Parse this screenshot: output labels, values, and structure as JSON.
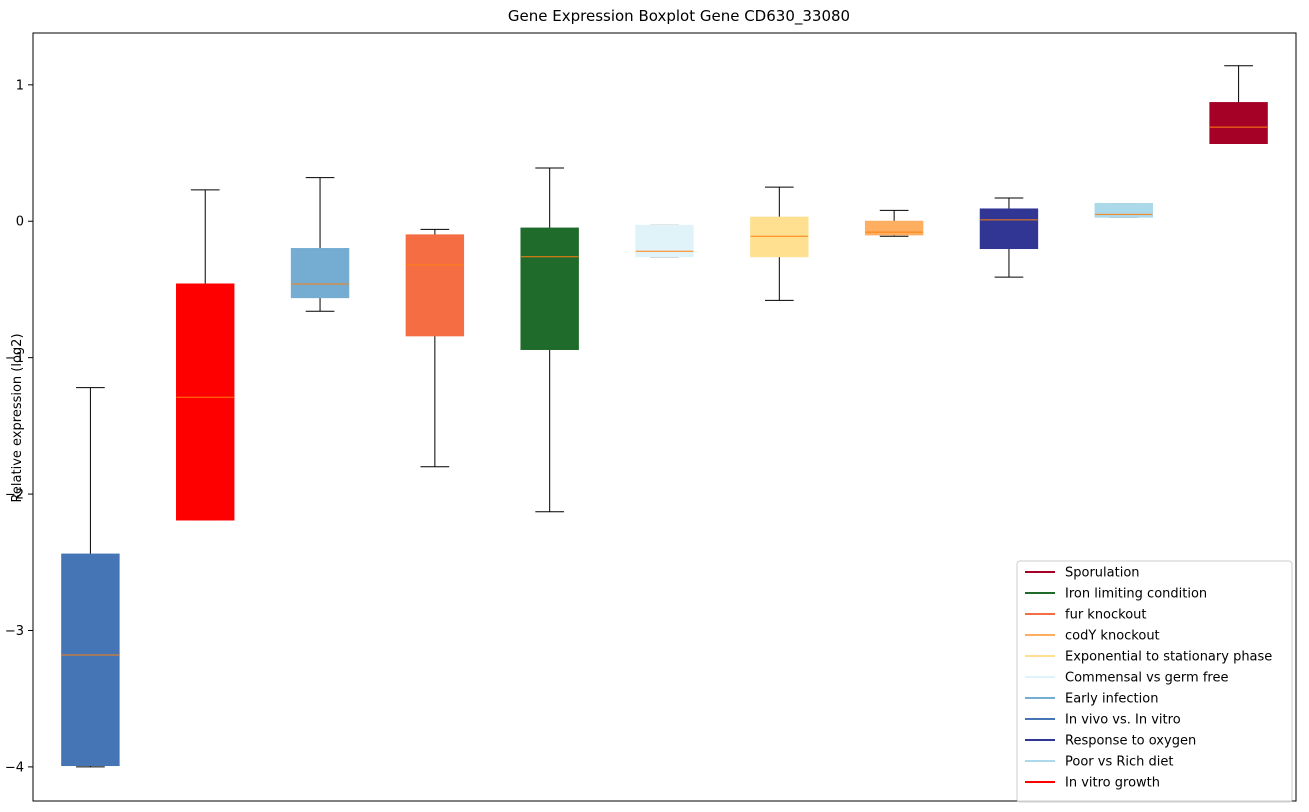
{
  "chart_data": {
    "type": "boxplot",
    "title": "Gene Expression Boxplot Gene CD630_33080",
    "xlabel": "",
    "ylabel": "Relative expression (log2)",
    "ylim": [
      -4.25,
      1.38
    ],
    "yticks": [
      1,
      0,
      -1,
      -2,
      -3,
      -4
    ],
    "ytick_labels": [
      "1",
      "0",
      "−1",
      "−2",
      "−3",
      "−4"
    ],
    "grid": false,
    "legend_position": "lower right",
    "median_color": "#ff7f0e",
    "boxes": [
      {
        "name": "In vivo vs. In vitro",
        "color": "#4575b4",
        "whisker_low": -4.0,
        "q1": -3.99,
        "median": -3.18,
        "q3": -2.44,
        "whisker_high": -1.22
      },
      {
        "name": "In vitro growth",
        "color": "#ff0000",
        "whisker_low": -2.19,
        "q1": -2.19,
        "median": -1.29,
        "q3": -0.46,
        "whisker_high": 0.23
      },
      {
        "name": "Early infection",
        "color": "#74add1",
        "whisker_low": -0.66,
        "q1": -0.56,
        "median": -0.46,
        "q3": -0.2,
        "whisker_high": 0.32
      },
      {
        "name": "fur knockout",
        "color": "#f46d43",
        "whisker_low": -1.8,
        "q1": -0.84,
        "median": -0.32,
        "q3": -0.1,
        "whisker_high": -0.06
      },
      {
        "name": "Iron limiting condition",
        "color": "#1f6b2b",
        "whisker_low": -2.13,
        "q1": -0.94,
        "median": -0.26,
        "q3": -0.05,
        "whisker_high": 0.39
      },
      {
        "name": "Commensal vs germ free",
        "color": "#e0f3f8",
        "whisker_low": -0.26,
        "q1": -0.26,
        "median": -0.22,
        "q3": -0.03,
        "whisker_high": -0.03
      },
      {
        "name": "Exponential to stationary phase",
        "color": "#fee090",
        "whisker_low": -0.58,
        "q1": -0.26,
        "median": -0.11,
        "q3": 0.03,
        "whisker_high": 0.25
      },
      {
        "name": "codY knockout",
        "color": "#fdae61",
        "whisker_low": -0.11,
        "q1": -0.1,
        "median": -0.08,
        "q3": 0.0,
        "whisker_high": 0.08
      },
      {
        "name": "Response to oxygen",
        "color": "#313695",
        "whisker_low": -0.41,
        "q1": -0.2,
        "median": 0.01,
        "q3": 0.09,
        "whisker_high": 0.17
      },
      {
        "name": "Poor vs Rich diet",
        "color": "#abd9e9",
        "whisker_low": 0.03,
        "q1": 0.03,
        "median": 0.05,
        "q3": 0.13,
        "whisker_high": 0.13
      },
      {
        "name": "Sporulation",
        "color": "#a50026",
        "whisker_low": 0.57,
        "q1": 0.57,
        "median": 0.69,
        "q3": 0.87,
        "whisker_high": 1.14
      }
    ],
    "legend": [
      {
        "label": "Sporulation",
        "color": "#a50026"
      },
      {
        "label": "Iron limiting condition",
        "color": "#1f6b2b"
      },
      {
        "label": "fur knockout",
        "color": "#f46d43"
      },
      {
        "label": "codY knockout",
        "color": "#fdae61"
      },
      {
        "label": "Exponential to stationary phase",
        "color": "#fee090"
      },
      {
        "label": "Commensal vs germ free",
        "color": "#e0f3f8"
      },
      {
        "label": "Early infection",
        "color": "#74add1"
      },
      {
        "label": "In vivo vs. In vitro",
        "color": "#4575b4"
      },
      {
        "label": "Response to oxygen",
        "color": "#313695"
      },
      {
        "label": "Poor vs Rich diet",
        "color": "#abd9e9"
      },
      {
        "label": "In vitro growth",
        "color": "#ff0000"
      }
    ]
  }
}
